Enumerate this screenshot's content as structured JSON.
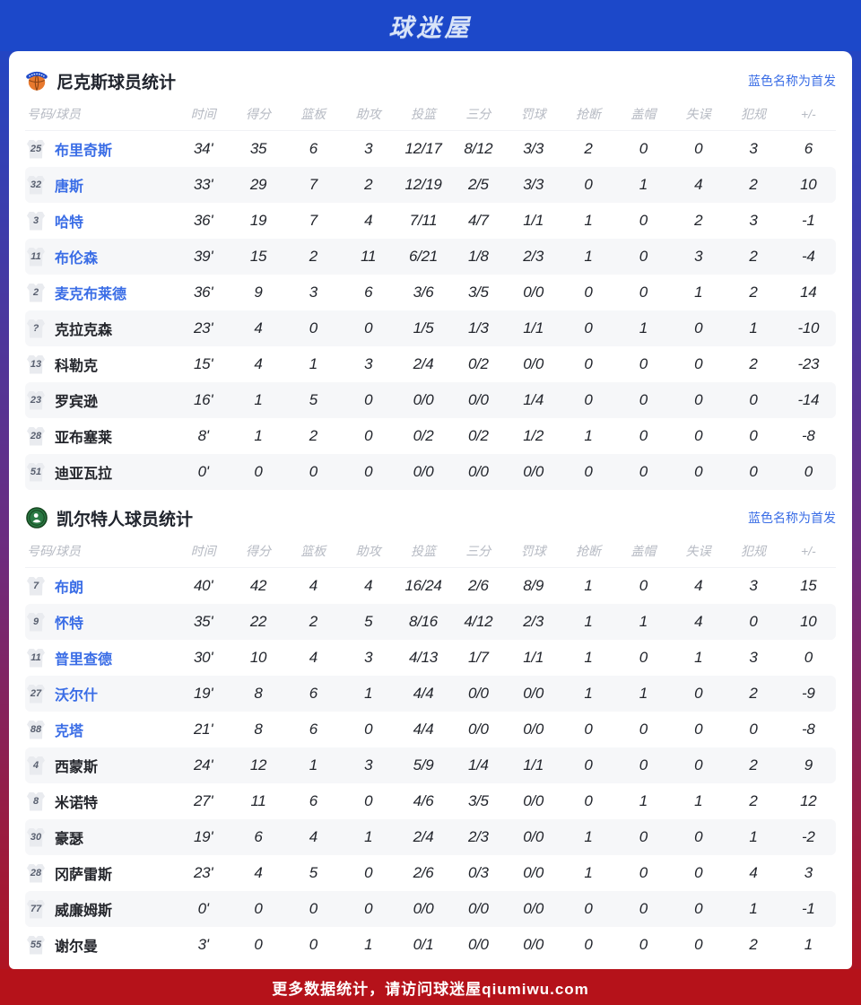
{
  "header": {
    "logo_text": "球迷屋",
    "logo_icon": "qiumiwu-wordmark-icon"
  },
  "legend": "蓝色名称为首发",
  "columns": [
    "号码/球员",
    "时间",
    "得分",
    "篮板",
    "助攻",
    "投篮",
    "三分",
    "罚球",
    "抢断",
    "盖帽",
    "失误",
    "犯规",
    "+/-"
  ],
  "teams": [
    {
      "title": "尼克斯球员统计",
      "logo_icon": "knicks-basketball-logo-icon",
      "players": [
        {
          "num": "25",
          "name": "布里奇斯",
          "starter": true,
          "stats": [
            "34'",
            "35",
            "6",
            "3",
            "12/17",
            "8/12",
            "3/3",
            "2",
            "0",
            "0",
            "3",
            "6"
          ]
        },
        {
          "num": "32",
          "name": "唐斯",
          "starter": true,
          "stats": [
            "33'",
            "29",
            "7",
            "2",
            "12/19",
            "2/5",
            "3/3",
            "0",
            "1",
            "4",
            "2",
            "10"
          ]
        },
        {
          "num": "3",
          "name": "哈特",
          "starter": true,
          "stats": [
            "36'",
            "19",
            "7",
            "4",
            "7/11",
            "4/7",
            "1/1",
            "1",
            "0",
            "2",
            "3",
            "-1"
          ]
        },
        {
          "num": "11",
          "name": "布伦森",
          "starter": true,
          "stats": [
            "39'",
            "15",
            "2",
            "11",
            "6/21",
            "1/8",
            "2/3",
            "1",
            "0",
            "3",
            "2",
            "-4"
          ]
        },
        {
          "num": "2",
          "name": "麦克布莱德",
          "starter": true,
          "stats": [
            "36'",
            "9",
            "3",
            "6",
            "3/6",
            "3/5",
            "0/0",
            "0",
            "0",
            "1",
            "2",
            "14"
          ]
        },
        {
          "num": "?",
          "name": "克拉克森",
          "starter": false,
          "stats": [
            "23'",
            "4",
            "0",
            "0",
            "1/5",
            "1/3",
            "1/1",
            "0",
            "1",
            "0",
            "1",
            "-10"
          ]
        },
        {
          "num": "13",
          "name": "科勒克",
          "starter": false,
          "stats": [
            "15'",
            "4",
            "1",
            "3",
            "2/4",
            "0/2",
            "0/0",
            "0",
            "0",
            "0",
            "2",
            "-23"
          ]
        },
        {
          "num": "23",
          "name": "罗宾逊",
          "starter": false,
          "stats": [
            "16'",
            "1",
            "5",
            "0",
            "0/0",
            "0/0",
            "1/4",
            "0",
            "0",
            "0",
            "0",
            "-14"
          ]
        },
        {
          "num": "28",
          "name": "亚布塞莱",
          "starter": false,
          "stats": [
            "8'",
            "1",
            "2",
            "0",
            "0/2",
            "0/2",
            "1/2",
            "1",
            "0",
            "0",
            "0",
            "-8"
          ]
        },
        {
          "num": "51",
          "name": "迪亚瓦拉",
          "starter": false,
          "stats": [
            "0'",
            "0",
            "0",
            "0",
            "0/0",
            "0/0",
            "0/0",
            "0",
            "0",
            "0",
            "0",
            "0"
          ]
        }
      ]
    },
    {
      "title": "凯尔特人球员统计",
      "logo_icon": "celtics-logo-icon",
      "players": [
        {
          "num": "7",
          "name": "布朗",
          "starter": true,
          "stats": [
            "40'",
            "42",
            "4",
            "4",
            "16/24",
            "2/6",
            "8/9",
            "1",
            "0",
            "4",
            "3",
            "15"
          ]
        },
        {
          "num": "9",
          "name": "怀特",
          "starter": true,
          "stats": [
            "35'",
            "22",
            "2",
            "5",
            "8/16",
            "4/12",
            "2/3",
            "1",
            "1",
            "4",
            "0",
            "10"
          ]
        },
        {
          "num": "11",
          "name": "普里查德",
          "starter": true,
          "stats": [
            "30'",
            "10",
            "4",
            "3",
            "4/13",
            "1/7",
            "1/1",
            "1",
            "0",
            "1",
            "3",
            "0"
          ]
        },
        {
          "num": "27",
          "name": "沃尔什",
          "starter": true,
          "stats": [
            "19'",
            "8",
            "6",
            "1",
            "4/4",
            "0/0",
            "0/0",
            "1",
            "1",
            "0",
            "2",
            "-9"
          ]
        },
        {
          "num": "88",
          "name": "克塔",
          "starter": true,
          "stats": [
            "21'",
            "8",
            "6",
            "0",
            "4/4",
            "0/0",
            "0/0",
            "0",
            "0",
            "0",
            "0",
            "-8"
          ]
        },
        {
          "num": "4",
          "name": "西蒙斯",
          "starter": false,
          "stats": [
            "24'",
            "12",
            "1",
            "3",
            "5/9",
            "1/4",
            "1/1",
            "0",
            "0",
            "0",
            "2",
            "9"
          ]
        },
        {
          "num": "8",
          "name": "米诺特",
          "starter": false,
          "stats": [
            "27'",
            "11",
            "6",
            "0",
            "4/6",
            "3/5",
            "0/0",
            "0",
            "1",
            "1",
            "2",
            "12"
          ]
        },
        {
          "num": "30",
          "name": "豪瑟",
          "starter": false,
          "stats": [
            "19'",
            "6",
            "4",
            "1",
            "2/4",
            "2/3",
            "0/0",
            "1",
            "0",
            "0",
            "1",
            "-2"
          ]
        },
        {
          "num": "28",
          "name": "冈萨雷斯",
          "starter": false,
          "stats": [
            "23'",
            "4",
            "5",
            "0",
            "2/6",
            "0/3",
            "0/0",
            "1",
            "0",
            "0",
            "4",
            "3"
          ]
        },
        {
          "num": "77",
          "name": "威廉姆斯",
          "starter": false,
          "stats": [
            "0'",
            "0",
            "0",
            "0",
            "0/0",
            "0/0",
            "0/0",
            "0",
            "0",
            "0",
            "1",
            "-1"
          ]
        },
        {
          "num": "55",
          "name": "谢尔曼",
          "starter": false,
          "stats": [
            "3'",
            "0",
            "0",
            "1",
            "0/1",
            "0/0",
            "0/0",
            "0",
            "0",
            "0",
            "2",
            "1"
          ]
        }
      ]
    }
  ],
  "footer": {
    "text": "更多数据统计，请访问球迷屋qiumiwu.com"
  },
  "colors": {
    "header_blue": "#1c48c9",
    "footer_red": "#b5121a",
    "starter_blue": "#3a6de6",
    "knicks_orange": "#e8792e",
    "celtics_green": "#2a7a44"
  }
}
